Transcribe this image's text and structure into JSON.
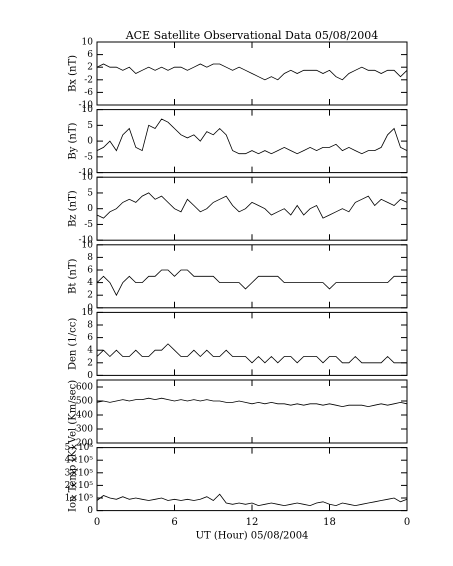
{
  "chart_data": {
    "type": "line",
    "title": "ACE Satellite Observational Data   05/08/2004",
    "xlabel": "UT (Hour)   05/08/2004",
    "x": [
      0,
      0.5,
      1,
      1.5,
      2,
      2.5,
      3,
      3.5,
      4,
      4.5,
      5,
      5.5,
      6,
      6.5,
      7,
      7.5,
      8,
      8.5,
      9,
      9.5,
      10,
      10.5,
      11,
      11.5,
      12,
      12.5,
      13,
      13.5,
      14,
      14.5,
      15,
      15.5,
      16,
      16.5,
      17,
      17.5,
      18,
      18.5,
      19,
      19.5,
      20,
      20.5,
      21,
      21.5,
      22,
      22.5,
      23,
      23.5,
      24
    ],
    "xlim": [
      0,
      24
    ],
    "xticks": [
      0,
      6,
      12,
      18,
      {
        "value": 24,
        "label": "0"
      }
    ],
    "color": "#000000",
    "panels": [
      {
        "ylabel": "Bx (nT)",
        "ylim": [
          -10,
          10
        ],
        "yticks": [
          -10,
          -6,
          -2,
          2,
          6,
          10
        ],
        "values": [
          2,
          3,
          2,
          2,
          1,
          2,
          0,
          1,
          2,
          1,
          2,
          1,
          2,
          2,
          1,
          2,
          3,
          2,
          3,
          3,
          2,
          1,
          2,
          1,
          0,
          -1,
          -2,
          -1,
          -2,
          0,
          1,
          0,
          1,
          1,
          1,
          0,
          1,
          -1,
          -2,
          0,
          1,
          2,
          1,
          1,
          0,
          1,
          1,
          -1,
          1
        ]
      },
      {
        "ylabel": "By (nT)",
        "ylim": [
          -10,
          10
        ],
        "yticks": [
          -10,
          -5,
          0,
          5,
          10
        ],
        "values": [
          -3,
          -2,
          0,
          -3,
          2,
          4,
          -2,
          -3,
          5,
          4,
          7,
          6,
          4,
          2,
          1,
          2,
          0,
          3,
          2,
          4,
          2,
          -3,
          -4,
          -4,
          -3,
          -4,
          -3,
          -4,
          -3,
          -2,
          -3,
          -4,
          -3,
          -2,
          -3,
          -2,
          -2,
          -1,
          -3,
          -2,
          -3,
          -4,
          -3,
          -3,
          -2,
          2,
          4,
          -2,
          -3
        ]
      },
      {
        "ylabel": "Bz (nT)",
        "ylim": [
          -10,
          10
        ],
        "yticks": [
          -10,
          -5,
          0,
          5,
          10
        ],
        "values": [
          -2,
          -3,
          -1,
          0,
          2,
          3,
          2,
          4,
          5,
          3,
          4,
          2,
          0,
          -1,
          3,
          1,
          -1,
          0,
          2,
          3,
          4,
          1,
          -1,
          0,
          2,
          1,
          0,
          -2,
          -1,
          0,
          -2,
          1,
          -2,
          0,
          1,
          -3,
          -2,
          -1,
          0,
          -1,
          2,
          3,
          4,
          1,
          3,
          2,
          1,
          3,
          2
        ]
      },
      {
        "ylabel": "Bt (nT)",
        "ylim": [
          0,
          10
        ],
        "yticks": [
          0,
          2,
          4,
          6,
          8,
          10
        ],
        "values": [
          4,
          5,
          4,
          2,
          4,
          5,
          4,
          4,
          5,
          5,
          6,
          6,
          5,
          6,
          6,
          5,
          5,
          5,
          5,
          4,
          4,
          4,
          4,
          3,
          4,
          5,
          5,
          5,
          5,
          4,
          4,
          4,
          4,
          4,
          4,
          4,
          3,
          4,
          4,
          4,
          4,
          4,
          4,
          4,
          4,
          4,
          5,
          5,
          5
        ]
      },
      {
        "ylabel": "Den (1/cc)",
        "ylim": [
          0,
          10
        ],
        "yticks": [
          0,
          2,
          4,
          6,
          8,
          10
        ],
        "values": [
          3,
          4,
          3,
          4,
          3,
          3,
          4,
          3,
          3,
          4,
          4,
          5,
          4,
          3,
          3,
          4,
          3,
          4,
          3,
          3,
          4,
          3,
          3,
          3,
          2,
          3,
          2,
          3,
          2,
          3,
          3,
          2,
          3,
          3,
          3,
          2,
          3,
          3,
          2,
          2,
          3,
          2,
          2,
          2,
          2,
          3,
          2,
          2,
          2
        ]
      },
      {
        "ylabel": "Vel (Km/sec)",
        "ylim": [
          200,
          650
        ],
        "yticks": [
          200,
          300,
          400,
          500,
          600
        ],
        "values": [
          490,
          500,
          490,
          500,
          510,
          500,
          510,
          510,
          520,
          510,
          520,
          510,
          500,
          510,
          500,
          510,
          500,
          510,
          500,
          500,
          490,
          490,
          500,
          490,
          480,
          490,
          480,
          490,
          480,
          480,
          470,
          480,
          470,
          480,
          480,
          470,
          480,
          470,
          460,
          470,
          470,
          470,
          460,
          470,
          480,
          470,
          480,
          490,
          480
        ]
      },
      {
        "ylabel": "Ion Temp (K)",
        "ylim": [
          0,
          500000
        ],
        "yticks": [
          0,
          {
            "value": 100000,
            "label": "1×10⁵"
          },
          {
            "value": 200000,
            "label": "2×10⁵"
          },
          {
            "value": 300000,
            "label": "3×10⁵"
          },
          {
            "value": 400000,
            "label": "4×10⁵"
          },
          {
            "value": 500000,
            "label": "5×10⁵"
          }
        ],
        "values": [
          80000,
          120000,
          100000,
          90000,
          110000,
          90000,
          100000,
          90000,
          80000,
          90000,
          100000,
          80000,
          90000,
          80000,
          90000,
          80000,
          90000,
          110000,
          80000,
          130000,
          60000,
          50000,
          60000,
          50000,
          60000,
          40000,
          50000,
          60000,
          50000,
          40000,
          50000,
          60000,
          50000,
          40000,
          60000,
          70000,
          50000,
          40000,
          60000,
          50000,
          40000,
          50000,
          60000,
          70000,
          80000,
          90000,
          100000,
          70000,
          90000
        ]
      }
    ]
  }
}
